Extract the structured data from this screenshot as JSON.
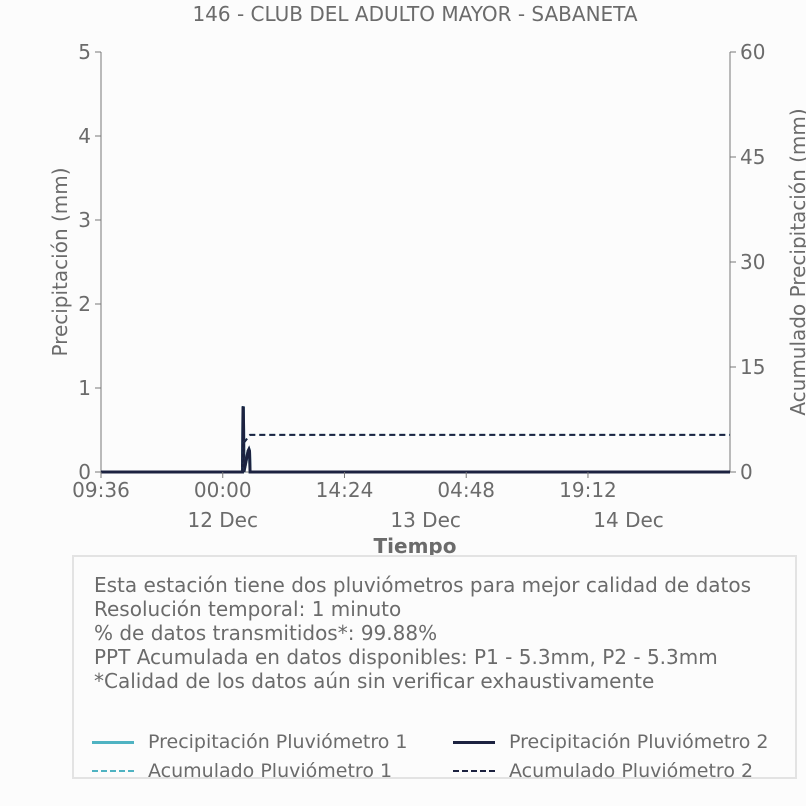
{
  "chart_data": {
    "type": "line",
    "title": "146 - CLUB DEL ADULTO MAYOR - SABANETA",
    "xlabel": "Tiempo",
    "ylabel": "Precipitación (mm)",
    "y2label": "Acumulado Precipitación (mm)",
    "x_range": [
      "2022-12-11 09:36",
      "2022-12-14 12:00"
    ],
    "ylim": [
      0,
      5
    ],
    "y2lim": [
      0,
      60
    ],
    "y_ticks": [
      "0",
      "1",
      "2",
      "3",
      "4",
      "5"
    ],
    "y2_ticks": [
      "0",
      "15",
      "30",
      "45",
      "60"
    ],
    "x_ticks": [
      {
        "x": "2022-12-11 09:36",
        "label": "09:36"
      },
      {
        "x": "2022-12-12 00:00",
        "label": "00:00"
      },
      {
        "x": "2022-12-12 14:24",
        "label": "14:24"
      },
      {
        "x": "2022-12-13 04:48",
        "label": "04:48"
      },
      {
        "x": "2022-12-13 19:12",
        "label": "19:12"
      }
    ],
    "x_day_labels": [
      {
        "x": "2022-12-12 00:00",
        "label": "12 Dec"
      },
      {
        "x": "2022-12-13 00:00",
        "label": "13 Dec"
      },
      {
        "x": "2022-12-14 00:00",
        "label": "14 Dec"
      }
    ],
    "series": [
      {
        "name": "Precipitación Pluviómetro 1",
        "axis": "left",
        "style": "solid",
        "color": "#4fb3c2",
        "x": [
          "2022-12-11 09:36",
          "2022-12-12 02:20",
          "2022-12-12 02:24",
          "2022-12-12 02:26",
          "2022-12-12 02:28",
          "2022-12-12 02:30",
          "2022-12-12 03:00",
          "2022-12-12 03:06",
          "2022-12-12 03:10",
          "2022-12-12 03:14",
          "2022-12-14 12:00"
        ],
        "y": [
          0,
          0,
          0.77,
          0.78,
          0.5,
          0,
          0.25,
          0.27,
          0.25,
          0,
          0
        ]
      },
      {
        "name": "Precipitación Pluviómetro 2",
        "axis": "left",
        "style": "solid",
        "color": "#1c2240",
        "x": [
          "2022-12-11 09:36",
          "2022-12-12 02:20",
          "2022-12-12 02:24",
          "2022-12-12 02:26",
          "2022-12-12 02:28",
          "2022-12-12 02:30",
          "2022-12-12 03:00",
          "2022-12-12 03:06",
          "2022-12-12 03:10",
          "2022-12-12 03:14",
          "2022-12-14 12:00"
        ],
        "y": [
          0,
          0,
          0.77,
          0.78,
          0.5,
          0,
          0.25,
          0.27,
          0.25,
          0,
          0
        ]
      },
      {
        "name": "Acumulado Pluviómetro 1",
        "axis": "right",
        "style": "dashed",
        "color": "#4fb3c2",
        "x": [
          "2022-12-11 09:36",
          "2022-12-12 02:20",
          "2022-12-12 02:30",
          "2022-12-12 03:14",
          "2022-12-14 12:00"
        ],
        "y": [
          0,
          0,
          4.2,
          5.3,
          5.3
        ]
      },
      {
        "name": "Acumulado Pluviómetro 2",
        "axis": "right",
        "style": "dashed",
        "color": "#1c2240",
        "x": [
          "2022-12-11 09:36",
          "2022-12-12 02:20",
          "2022-12-12 02:30",
          "2022-12-12 03:14",
          "2022-12-14 12:00"
        ],
        "y": [
          0,
          0,
          4.2,
          5.3,
          5.3
        ]
      }
    ]
  },
  "info": {
    "lines": [
      "Esta estación tiene dos pluviómetros para mejor calidad de datos",
      "Resolución temporal: 1 minuto",
      "% de datos transmitidos*: 99.88%",
      "PPT Acumulada en datos disponibles: P1 - 5.3mm, P2 - 5.3mm",
      "*Calidad de los datos aún sin verificar exhaustivamente"
    ]
  },
  "legend": {
    "items": [
      {
        "label": "Precipitación Pluviómetro 1",
        "color": "#4fb3c2",
        "style": "solid"
      },
      {
        "label": "Precipitación Pluviómetro 2",
        "color": "#1c2240",
        "style": "solid"
      },
      {
        "label": "Acumulado Pluviómetro 1",
        "color": "#4fb3c2",
        "style": "dashed"
      },
      {
        "label": "Acumulado Pluviómetro 2",
        "color": "#1c2240",
        "style": "dashed"
      }
    ]
  }
}
